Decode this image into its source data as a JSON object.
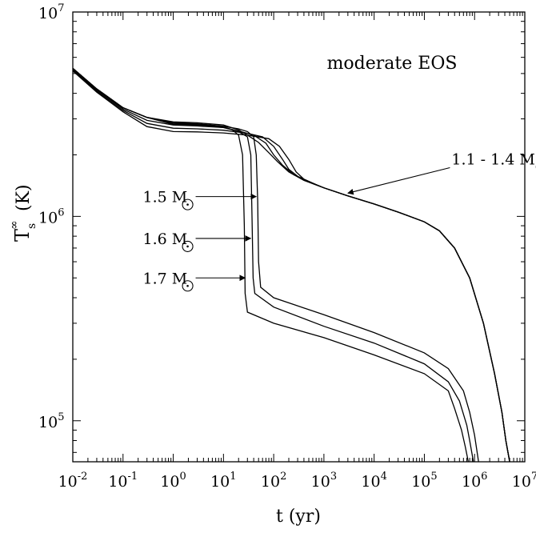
{
  "chart_data": {
    "type": "line",
    "title": "",
    "xlabel": "t (yr)",
    "ylabel": "T",
    "ylabel_sub": "s",
    "ylabel_sup": "∞",
    "ylabel_unit": "(K)",
    "xscale": "log",
    "yscale": "log",
    "xlim": [
      0.01,
      10000000
    ],
    "ylim": [
      63000,
      10000000
    ],
    "grid": false,
    "x_ticks": [
      {
        "base": "10",
        "exp": "-2"
      },
      {
        "base": "10",
        "exp": "-1"
      },
      {
        "base": "10",
        "exp": "0"
      },
      {
        "base": "10",
        "exp": "1"
      },
      {
        "base": "10",
        "exp": "2"
      },
      {
        "base": "10",
        "exp": "3"
      },
      {
        "base": "10",
        "exp": "4"
      },
      {
        "base": "10",
        "exp": "5"
      },
      {
        "base": "10",
        "exp": "6"
      },
      {
        "base": "10",
        "exp": "7"
      }
    ],
    "y_ticks": [
      {
        "base": "10",
        "exp": "5"
      },
      {
        "base": "10",
        "exp": "6"
      },
      {
        "base": "10",
        "exp": "7"
      }
    ],
    "panel_label": "moderate EOS",
    "annotations": [
      {
        "text": "1.1 - 1.4 M",
        "x_tail": 300000,
        "y_tail": 1700000,
        "x_head": 3000,
        "y_head": 1300000
      },
      {
        "text": "1.5 M",
        "x_tail": 1.0,
        "y_tail": 1250000,
        "x_head": 45,
        "y_head": 1250000
      },
      {
        "text": "1.6 M",
        "x_tail": 1.0,
        "y_tail": 780000,
        "x_head": 35,
        "y_head": 780000
      },
      {
        "text": "1.7 M",
        "x_tail": 1.0,
        "y_tail": 500000,
        "x_head": 27,
        "y_head": 500000
      }
    ],
    "series": [
      {
        "values": [
          [
            0.01,
            5300000
          ],
          [
            0.03,
            4200000
          ],
          [
            0.1,
            3400000
          ],
          [
            0.3,
            3050000
          ],
          [
            1,
            2900000
          ],
          [
            3,
            2870000
          ],
          [
            10,
            2800000
          ],
          [
            20,
            2650000
          ],
          [
            30,
            2500000
          ],
          [
            50,
            2300000
          ],
          [
            80,
            2050000
          ],
          [
            120,
            1850000
          ],
          [
            200,
            1650000
          ],
          [
            400,
            1500000
          ],
          [
            1000,
            1380000
          ],
          [
            3000,
            1260000
          ],
          [
            10000,
            1150000
          ],
          [
            30000,
            1050000
          ],
          [
            100000,
            940000
          ],
          [
            200000,
            850000
          ],
          [
            400000,
            700000
          ],
          [
            800000,
            500000
          ],
          [
            1500000,
            300000
          ],
          [
            2500000,
            170000
          ],
          [
            3500000,
            110000
          ],
          [
            4200000,
            80000
          ],
          [
            5000000,
            63000
          ]
        ]
      },
      {
        "values": [
          [
            0.01,
            5250000
          ],
          [
            0.03,
            4150000
          ],
          [
            0.1,
            3350000
          ],
          [
            0.3,
            2950000
          ],
          [
            1,
            2800000
          ],
          [
            3,
            2770000
          ],
          [
            10,
            2720000
          ],
          [
            20,
            2620000
          ],
          [
            40,
            2500000
          ],
          [
            70,
            2280000
          ],
          [
            100,
            2000000
          ],
          [
            150,
            1780000
          ],
          [
            250,
            1600000
          ],
          [
            500,
            1480000
          ],
          [
            1000,
            1380000
          ],
          [
            3000,
            1260000
          ],
          [
            10000,
            1150000
          ],
          [
            30000,
            1050000
          ],
          [
            100000,
            940000
          ],
          [
            200000,
            850000
          ],
          [
            400000,
            700000
          ],
          [
            800000,
            500000
          ],
          [
            1500000,
            300000
          ],
          [
            2500000,
            170000
          ],
          [
            3500000,
            110000
          ],
          [
            4200000,
            80000
          ],
          [
            5000000,
            63000
          ]
        ]
      },
      {
        "values": [
          [
            0.01,
            5200000
          ],
          [
            0.03,
            4100000
          ],
          [
            0.1,
            3300000
          ],
          [
            0.3,
            2850000
          ],
          [
            1,
            2700000
          ],
          [
            3,
            2680000
          ],
          [
            10,
            2640000
          ],
          [
            30,
            2550000
          ],
          [
            60,
            2450000
          ],
          [
            100,
            2200000
          ],
          [
            150,
            1900000
          ],
          [
            200,
            1700000
          ],
          [
            300,
            1570000
          ],
          [
            600,
            1450000
          ],
          [
            1000,
            1380000
          ],
          [
            3000,
            1260000
          ],
          [
            10000,
            1150000
          ],
          [
            30000,
            1050000
          ],
          [
            100000,
            940000
          ],
          [
            200000,
            850000
          ],
          [
            400000,
            700000
          ],
          [
            800000,
            500000
          ],
          [
            1500000,
            300000
          ],
          [
            2500000,
            170000
          ],
          [
            3500000,
            110000
          ],
          [
            4200000,
            80000
          ],
          [
            5000000,
            63000
          ]
        ]
      },
      {
        "values": [
          [
            0.01,
            5150000
          ],
          [
            0.03,
            4050000
          ],
          [
            0.1,
            3250000
          ],
          [
            0.3,
            2750000
          ],
          [
            1,
            2600000
          ],
          [
            3,
            2590000
          ],
          [
            10,
            2560000
          ],
          [
            30,
            2500000
          ],
          [
            80,
            2400000
          ],
          [
            130,
            2200000
          ],
          [
            200,
            1900000
          ],
          [
            280,
            1650000
          ],
          [
            400,
            1520000
          ],
          [
            700,
            1430000
          ],
          [
            1000,
            1380000
          ],
          [
            3000,
            1260000
          ],
          [
            10000,
            1150000
          ],
          [
            30000,
            1050000
          ],
          [
            100000,
            940000
          ],
          [
            200000,
            850000
          ],
          [
            400000,
            700000
          ],
          [
            800000,
            500000
          ],
          [
            1500000,
            300000
          ],
          [
            2500000,
            170000
          ],
          [
            3500000,
            110000
          ],
          [
            4200000,
            80000
          ],
          [
            5000000,
            63000
          ]
        ]
      },
      {
        "values": [
          [
            0.01,
            5300000
          ],
          [
            0.03,
            4200000
          ],
          [
            0.1,
            3400000
          ],
          [
            0.3,
            3050000
          ],
          [
            1,
            2880000
          ],
          [
            3,
            2840000
          ],
          [
            10,
            2760000
          ],
          [
            20,
            2680000
          ],
          [
            30,
            2600000
          ],
          [
            40,
            2450000
          ],
          [
            45,
            2000000
          ],
          [
            48,
            1200000
          ],
          [
            50,
            600000
          ],
          [
            55,
            450000
          ],
          [
            100,
            400000
          ],
          [
            1000,
            330000
          ],
          [
            10000,
            270000
          ],
          [
            100000,
            215000
          ],
          [
            300000,
            180000
          ],
          [
            600000,
            140000
          ],
          [
            800000,
            110000
          ],
          [
            1000000,
            85000
          ],
          [
            1200000,
            63000
          ]
        ]
      },
      {
        "values": [
          [
            0.01,
            5300000
          ],
          [
            0.03,
            4200000
          ],
          [
            0.1,
            3400000
          ],
          [
            0.3,
            3050000
          ],
          [
            1,
            2850000
          ],
          [
            3,
            2820000
          ],
          [
            10,
            2740000
          ],
          [
            20,
            2600000
          ],
          [
            30,
            2450000
          ],
          [
            35,
            2000000
          ],
          [
            37,
            1000000
          ],
          [
            39,
            500000
          ],
          [
            42,
            420000
          ],
          [
            100,
            360000
          ],
          [
            1000,
            290000
          ],
          [
            10000,
            240000
          ],
          [
            100000,
            190000
          ],
          [
            300000,
            155000
          ],
          [
            500000,
            125000
          ],
          [
            700000,
            95000
          ],
          [
            800000,
            80000
          ],
          [
            950000,
            63000
          ]
        ]
      },
      {
        "values": [
          [
            0.01,
            5300000
          ],
          [
            0.03,
            4200000
          ],
          [
            0.1,
            3400000
          ],
          [
            0.3,
            3050000
          ],
          [
            1,
            2820000
          ],
          [
            3,
            2800000
          ],
          [
            10,
            2720000
          ],
          [
            15,
            2650000
          ],
          [
            20,
            2500000
          ],
          [
            24,
            2000000
          ],
          [
            26,
            900000
          ],
          [
            27,
            420000
          ],
          [
            30,
            340000
          ],
          [
            100,
            300000
          ],
          [
            1000,
            255000
          ],
          [
            10000,
            210000
          ],
          [
            100000,
            170000
          ],
          [
            300000,
            140000
          ],
          [
            400000,
            115000
          ],
          [
            550000,
            90000
          ],
          [
            650000,
            75000
          ],
          [
            750000,
            63000
          ]
        ]
      }
    ]
  }
}
